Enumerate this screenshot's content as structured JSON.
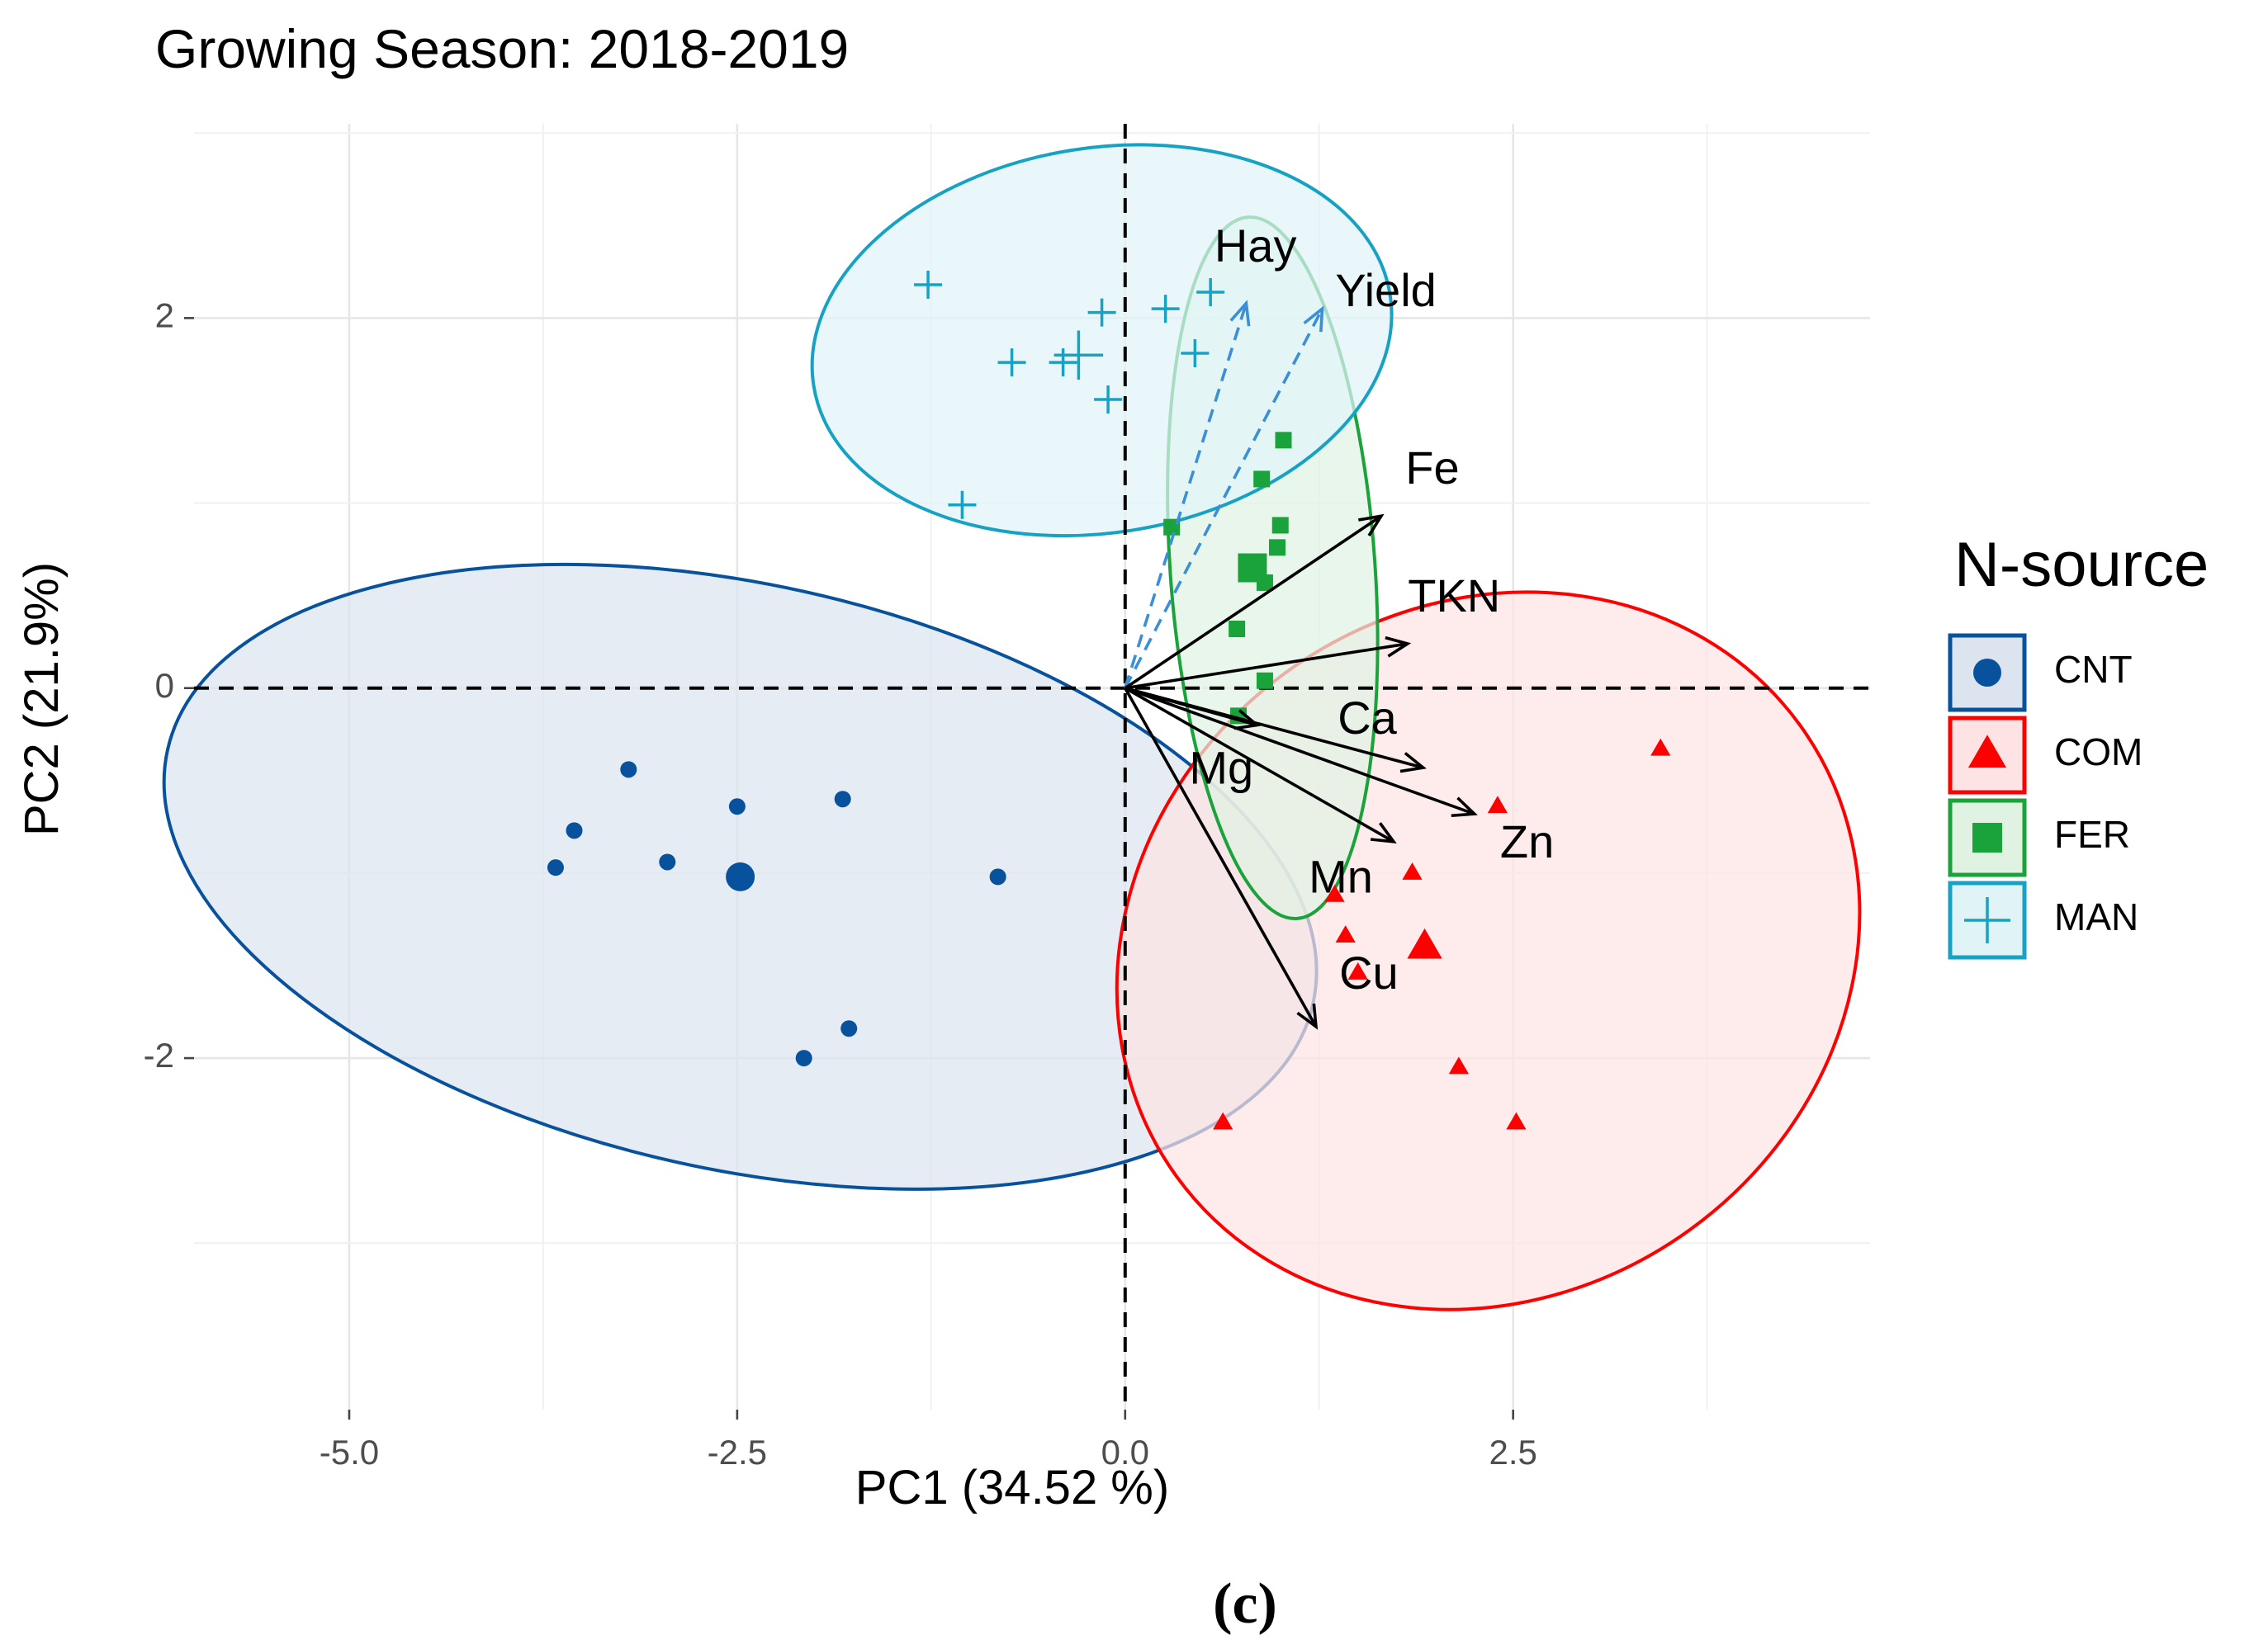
{
  "chart_data": {
    "type": "scatter",
    "title": "Growing Season: 2018-2019",
    "xlabel": "PC1 (34.52 %)",
    "ylabel": "PC2 (21.9%)",
    "xlim": [
      -6.0,
      4.8
    ],
    "ylim": [
      -3.9,
      3.05
    ],
    "x_ticks": [
      -5.0,
      -2.5,
      0.0,
      2.5
    ],
    "x_tick_labels": [
      "-5.0",
      "-2.5",
      "0.0",
      "2.5"
    ],
    "y_ticks": [
      -2,
      0,
      2
    ],
    "y_tick_labels": [
      "-2",
      "0",
      "2"
    ],
    "grid": true,
    "legend": {
      "title": "N-source",
      "position": "right"
    },
    "caption": "(c)",
    "series": [
      {
        "name": "CNT",
        "color": "#08519c",
        "fill": "#dbe4ef",
        "shape": "circle",
        "points": [
          [
            -3.2,
            -0.44
          ],
          [
            -3.55,
            -0.77
          ],
          [
            -3.67,
            -0.97
          ],
          [
            -2.95,
            -0.94
          ],
          [
            -2.5,
            -0.64
          ],
          [
            -1.82,
            -0.6
          ],
          [
            -0.82,
            -1.02
          ],
          [
            -1.78,
            -1.84
          ],
          [
            -2.07,
            -2.0
          ]
        ],
        "centroid": [
          -2.48,
          -1.02
        ],
        "ellipse": {
          "cx": -2.48,
          "cy": -1.02,
          "rx": 3.78,
          "ry": 1.58,
          "angle_deg": -12.5
        }
      },
      {
        "name": "COM",
        "color": "#ff0000",
        "fill": "#fde3e3",
        "shape": "triangle",
        "points": [
          [
            3.45,
            -0.33
          ],
          [
            2.4,
            -0.64
          ],
          [
            1.85,
            -1.0
          ],
          [
            1.35,
            -1.12
          ],
          [
            1.42,
            -1.34
          ],
          [
            1.5,
            -1.54
          ],
          [
            2.15,
            -2.05
          ],
          [
            2.52,
            -2.35
          ],
          [
            0.63,
            -2.35
          ]
        ],
        "centroid": [
          1.93,
          -1.4
        ],
        "ellipse": {
          "cx": 2.34,
          "cy": -1.42,
          "rx": 2.48,
          "ry": 1.86,
          "angle_deg": 36
        }
      },
      {
        "name": "FER",
        "color": "#1aa33b",
        "fill": "#e0f3e3",
        "shape": "square",
        "points": [
          [
            1.02,
            1.34
          ],
          [
            0.88,
            1.13
          ],
          [
            1.0,
            0.88
          ],
          [
            0.98,
            0.76
          ],
          [
            0.3,
            0.87
          ],
          [
            0.9,
            0.57
          ],
          [
            0.72,
            0.32
          ],
          [
            0.9,
            0.04
          ],
          [
            0.73,
            -0.15
          ]
        ],
        "centroid": [
          0.82,
          0.65
        ],
        "ellipse": {
          "cx": 0.95,
          "cy": 0.65,
          "rx": 0.66,
          "ry": 1.9,
          "angle_deg": 4
        }
      },
      {
        "name": "MAN",
        "color": "#17a2c4",
        "fill": "#e0f4f8",
        "shape": "cross",
        "points": [
          [
            -1.27,
            2.18
          ],
          [
            -1.05,
            0.99
          ],
          [
            -0.73,
            1.76
          ],
          [
            -0.4,
            1.76
          ],
          [
            -0.15,
            2.03
          ],
          [
            -0.11,
            1.56
          ],
          [
            0.26,
            2.05
          ],
          [
            0.55,
            2.14
          ],
          [
            0.45,
            1.81
          ]
        ],
        "centroid": [
          -0.3,
          1.8
        ],
        "ellipse": {
          "cx": -0.15,
          "cy": 1.88,
          "rx": 1.88,
          "ry": 1.04,
          "angle_deg": 9
        }
      }
    ],
    "loadings": [
      {
        "name": "Hay",
        "x": 0.78,
        "y": 2.08,
        "label_x": 0.84,
        "label_y": 2.37,
        "style": "dashed",
        "color": "#3a8fd8"
      },
      {
        "name": "Yield",
        "x": 1.27,
        "y": 2.05,
        "label_x": 1.68,
        "label_y": 2.13,
        "style": "dashed",
        "color": "#3a8fd8"
      },
      {
        "name": "Fe",
        "x": 1.65,
        "y": 0.93,
        "label_x": 1.98,
        "label_y": 1.17,
        "style": "solid",
        "color": "#000000"
      },
      {
        "name": "TKN",
        "x": 1.82,
        "y": 0.24,
        "label_x": 2.12,
        "label_y": 0.48,
        "style": "solid",
        "color": "#000000"
      },
      {
        "name": "Ca",
        "x": 1.92,
        "y": -0.43,
        "label_x": 1.56,
        "label_y": -0.18,
        "style": "solid",
        "color": "#000000"
      },
      {
        "name": "Zn",
        "x": 2.25,
        "y": -0.68,
        "label_x": 2.59,
        "label_y": -0.85,
        "style": "solid",
        "color": "#000000"
      },
      {
        "name": "Mg",
        "x": 0.85,
        "y": -0.2,
        "label_x": 0.62,
        "label_y": -0.45,
        "style": "solid",
        "color": "#000000"
      },
      {
        "name": "Mn",
        "x": 1.73,
        "y": -0.83,
        "label_x": 1.39,
        "label_y": -1.04,
        "style": "solid",
        "color": "#000000"
      },
      {
        "name": "Cu",
        "x": 1.23,
        "y": -1.83,
        "label_x": 1.57,
        "label_y": -1.56,
        "style": "solid",
        "color": "#000000"
      }
    ]
  }
}
